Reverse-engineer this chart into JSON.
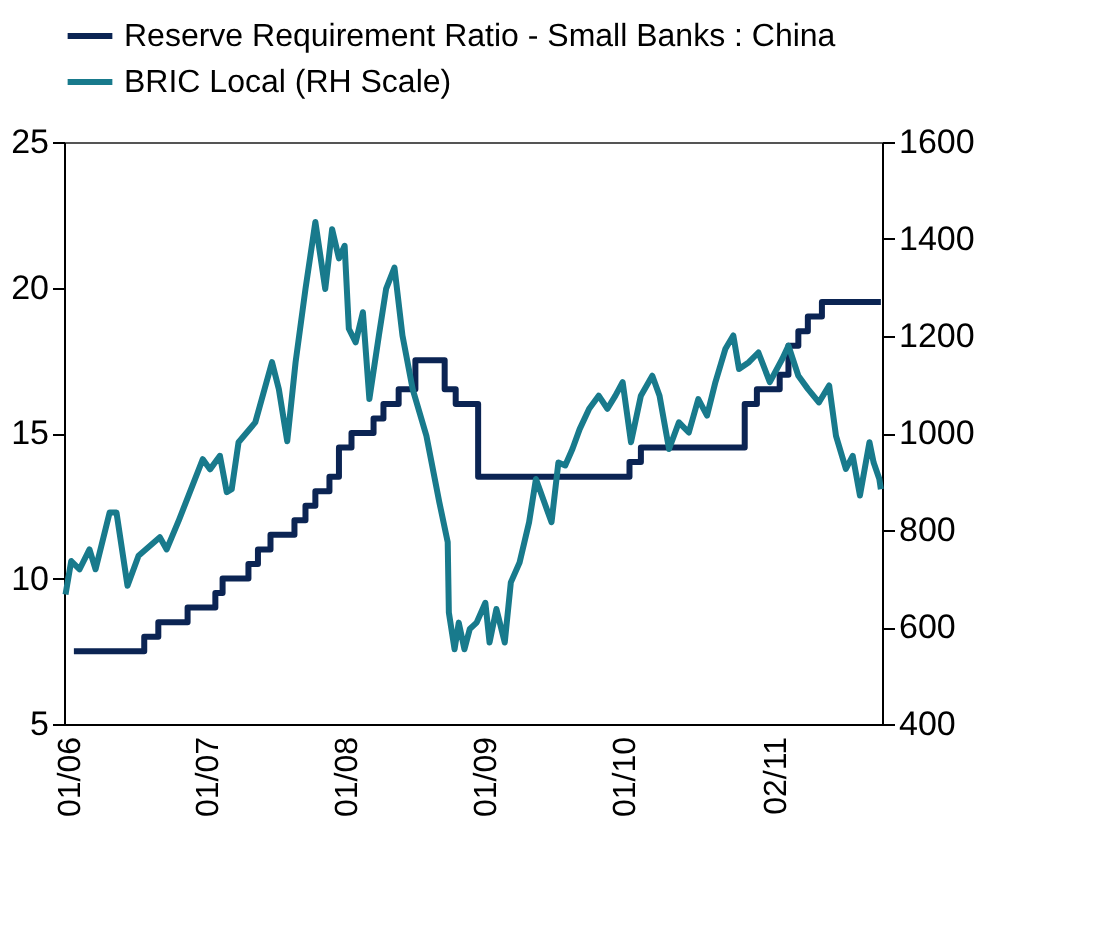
{
  "chart_data": {
    "type": "line",
    "xlim": [
      "2005-12-20",
      "2011-11-10"
    ],
    "xticks": [
      {
        "value": "2006-01",
        "label": "01/06"
      },
      {
        "value": "2007-01",
        "label": "01/07"
      },
      {
        "value": "2008-01",
        "label": "01/08"
      },
      {
        "value": "2009-01",
        "label": "01/09"
      },
      {
        "value": "2010-01",
        "label": "01/10"
      },
      {
        "value": "2011-02",
        "label": "02/11"
      }
    ],
    "ylim": [
      5,
      25
    ],
    "yticks": [
      5,
      10,
      15,
      20,
      25
    ],
    "y2lim": [
      400,
      1600
    ],
    "y2ticks": [
      400,
      600,
      800,
      1000,
      1200,
      1400,
      1600
    ],
    "grid": false,
    "legend": "top",
    "series": [
      {
        "name": "Reserve Requirement Ratio - Small Banks : China",
        "type": "step",
        "color": "#0b2453",
        "x": [
          "2006-01-15",
          "2006-07-19",
          "2006-08-25",
          "2006-11-10",
          "2007-01-22",
          "2007-02-10",
          "2007-04-19",
          "2007-05-14",
          "2007-06-16",
          "2007-08-18",
          "2007-09-16",
          "2007-10-12",
          "2007-11-18",
          "2007-12-13",
          "2008-01-15",
          "2008-03-13",
          "2008-04-08",
          "2008-05-18",
          "2008-07-01",
          "2008-09-16",
          "2008-10-15",
          "2008-12-13",
          "2010-01-15",
          "2010-02-14",
          "2010-11-14",
          "2010-12-16",
          "2011-02-14",
          "2011-03-09",
          "2011-04-04",
          "2011-04-29",
          "2011-06-05",
          "2011-11-07"
        ],
        "values": [
          7.5,
          8,
          8.5,
          9,
          9.5,
          10,
          10.5,
          11,
          11.5,
          12,
          12.5,
          13,
          13.5,
          14.5,
          15,
          15.5,
          16,
          16.5,
          17.5,
          16.5,
          16,
          13.5,
          14,
          14.5,
          16,
          16.5,
          17,
          18,
          18.5,
          19,
          19.5,
          19.5
        ]
      },
      {
        "name": "BRIC Local (RH Scale)",
        "axis": "y2",
        "color": "#187a8c",
        "x": [
          "2005-12-24",
          "2006-01-08",
          "2006-01-30",
          "2006-02-25",
          "2006-03-13",
          "2006-04-19",
          "2006-05-07",
          "2006-06-05",
          "2006-07-04",
          "2006-08-29",
          "2006-09-16",
          "2006-10-19",
          "2006-12-20",
          "2007-01-08",
          "2007-02-03",
          "2007-02-21",
          "2007-03-06",
          "2007-03-24",
          "2007-05-07",
          "2007-06-20",
          "2007-07-08",
          "2007-07-30",
          "2007-08-21",
          "2007-09-16",
          "2007-10-12",
          "2007-11-07",
          "2007-11-25",
          "2007-12-13",
          "2007-12-28",
          "2008-01-08",
          "2008-01-26",
          "2008-02-14",
          "2008-03-02",
          "2008-03-27",
          "2008-04-15",
          "2008-05-07",
          "2008-05-28",
          "2008-06-24",
          "2008-07-30",
          "2008-09-02",
          "2008-09-24",
          "2008-09-27",
          "2008-10-12",
          "2008-10-23",
          "2008-11-07",
          "2008-11-21",
          "2008-12-09",
          "2009-01-01",
          "2009-01-12",
          "2009-01-30",
          "2009-02-21",
          "2009-03-09",
          "2009-04-01",
          "2009-04-26",
          "2009-05-14",
          "2009-06-05",
          "2009-06-24",
          "2009-07-12",
          "2009-07-30",
          "2009-08-18",
          "2009-09-06",
          "2009-10-01",
          "2009-10-26",
          "2009-11-18",
          "2009-12-09",
          "2009-12-28",
          "2010-01-19",
          "2010-02-14",
          "2010-03-16",
          "2010-04-04",
          "2010-04-29",
          "2010-05-25",
          "2010-06-20",
          "2010-07-15",
          "2010-08-07",
          "2010-08-29",
          "2010-09-24",
          "2010-10-15",
          "2010-10-30",
          "2010-11-25",
          "2010-12-20",
          "2011-01-19",
          "2011-02-21",
          "2011-03-09",
          "2011-04-04",
          "2011-04-29",
          "2011-05-28",
          "2011-06-24",
          "2011-07-12",
          "2011-08-07",
          "2011-08-25",
          "2011-09-13",
          "2011-10-08",
          "2011-10-19",
          "2011-11-03",
          "2011-11-07"
        ],
        "values": [
          667,
          736,
          719,
          760,
          719,
          836,
          836,
          685,
          747,
          785,
          760,
          822,
          946,
          925,
          953,
          878,
          884,
          981,
          1022,
          1146,
          1090,
          983,
          1146,
          1297,
          1435,
          1297,
          1420,
          1360,
          1386,
          1215,
          1187,
          1249,
          1070,
          1201,
          1297,
          1341,
          1201,
          1090,
          994,
          857,
          775,
          630,
          554,
          609,
          554,
          596,
          609,
          650,
          568,
          637,
          568,
          692,
          733,
          816,
          905,
          857,
          816,
          939,
          933,
          967,
          1008,
          1050,
          1077,
          1050,
          1077,
          1105,
          981,
          1077,
          1118,
          1077,
          967,
          1022,
          1001,
          1070,
          1036,
          1105,
          1173,
          1201,
          1132,
          1146,
          1166,
          1105,
          1153,
          1180,
          1118,
          1091,
          1063,
          1098,
          994,
          926,
          953,
          871,
          981,
          939,
          905,
          884
        ]
      }
    ]
  }
}
